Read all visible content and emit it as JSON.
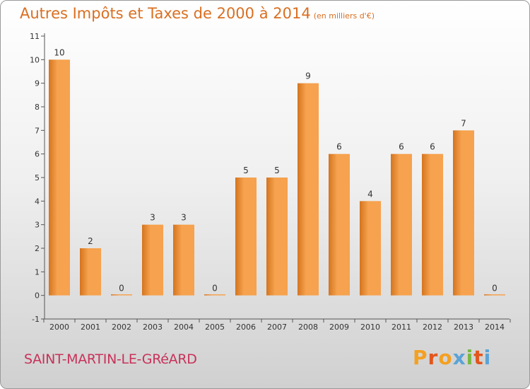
{
  "header": {
    "title": "Autres Impôts et Taxes de 2000 à 2014",
    "unit_note": "(en milliers d'€)"
  },
  "footer": {
    "commune": "SAINT-MARTIN-LE-GRéARD",
    "brand": "Proxiti"
  },
  "colors": {
    "title": "#d96f22",
    "commune": "#c8325a",
    "bar_light": "#f6a24e",
    "bar_dark": "#d4741f",
    "logo_letters": [
      "#f4a020",
      "#e3561c",
      "#f4a020",
      "#5ba3d6",
      "#78b843",
      "#e3561c",
      "#5ba3d6"
    ]
  },
  "chart_data": {
    "type": "bar",
    "categories": [
      "2000",
      "2001",
      "2002",
      "2003",
      "2004",
      "2005",
      "2006",
      "2007",
      "2008",
      "2009",
      "2010",
      "2011",
      "2012",
      "2013",
      "2014"
    ],
    "values": [
      10,
      2,
      0,
      3,
      3,
      0,
      5,
      5,
      9,
      6,
      4,
      6,
      6,
      7,
      0
    ],
    "y_ticks": [
      "-1",
      "0",
      "1",
      "2",
      "3",
      "4",
      "5",
      "6",
      "7",
      "8",
      "9",
      "10",
      "11"
    ],
    "ylim": [
      -1,
      11
    ],
    "grid": false,
    "legend": "none"
  }
}
